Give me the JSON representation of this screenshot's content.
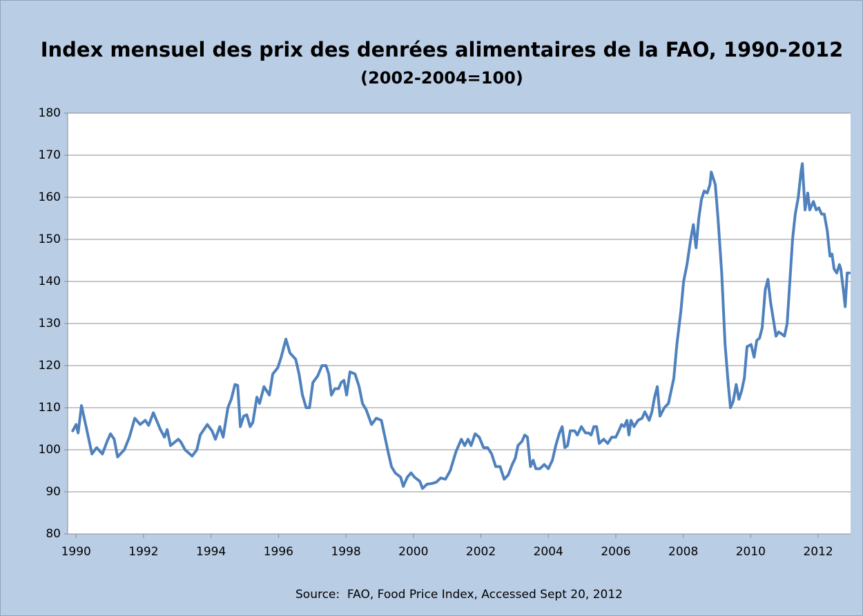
{
  "chart_data": {
    "type": "line",
    "title": "Index mensuel des prix des denrées alimentaires de la FAO, 1990-2012",
    "subtitle": "(2002-2004=100)",
    "source": "Source:  FAO, Food Price Index, Accessed Sept 20, 2012",
    "color": "#4f81bd",
    "grid": true,
    "xlim": [
      1989.75,
      2012.96
    ],
    "xticks": [
      1990,
      1992,
      1994,
      1996,
      1998,
      2000,
      2002,
      2004,
      2006,
      2008,
      2010,
      2012
    ],
    "ylim": [
      80,
      180
    ],
    "yticks": [
      80,
      90,
      100,
      110,
      120,
      130,
      140,
      150,
      160,
      170,
      180
    ],
    "x": [
      1989.9,
      1990.0,
      1990.06,
      1990.16,
      1990.31,
      1990.47,
      1990.61,
      1990.78,
      1990.92,
      1991.02,
      1991.13,
      1991.23,
      1991.43,
      1991.58,
      1991.74,
      1991.9,
      1992.05,
      1992.15,
      1992.29,
      1992.5,
      1992.62,
      1992.7,
      1992.8,
      1993.03,
      1993.11,
      1993.23,
      1993.44,
      1993.58,
      1993.68,
      1993.89,
      1994.03,
      1994.13,
      1994.26,
      1994.36,
      1994.5,
      1994.6,
      1994.71,
      1994.79,
      1994.87,
      1994.97,
      1995.06,
      1995.16,
      1995.24,
      1995.36,
      1995.44,
      1995.57,
      1995.73,
      1995.83,
      1995.98,
      1996.08,
      1996.22,
      1996.34,
      1996.51,
      1996.61,
      1996.71,
      1996.82,
      1996.92,
      1997.02,
      1997.16,
      1997.29,
      1997.41,
      1997.49,
      1997.57,
      1997.67,
      1997.78,
      1997.86,
      1997.94,
      1998.02,
      1998.12,
      1998.27,
      1998.39,
      1998.49,
      1998.6,
      1998.76,
      1998.9,
      1999.05,
      1999.13,
      1999.25,
      1999.35,
      1999.46,
      1999.62,
      1999.7,
      1999.82,
      1999.93,
      2000.03,
      2000.19,
      2000.27,
      2000.4,
      2000.56,
      2000.68,
      2000.81,
      2000.95,
      2001.09,
      2001.26,
      2001.42,
      2001.52,
      2001.62,
      2001.71,
      2001.83,
      2001.95,
      2002.08,
      2002.2,
      2002.32,
      2002.44,
      2002.57,
      2002.69,
      2002.81,
      2002.93,
      2003.02,
      2003.1,
      2003.22,
      2003.3,
      2003.38,
      2003.47,
      2003.55,
      2003.63,
      2003.75,
      2003.88,
      2004.0,
      2004.12,
      2004.22,
      2004.33,
      2004.41,
      2004.49,
      2004.57,
      2004.65,
      2004.78,
      2004.86,
      2004.98,
      2005.1,
      2005.19,
      2005.27,
      2005.35,
      2005.43,
      2005.51,
      2005.64,
      2005.76,
      2005.88,
      2006.0,
      2006.09,
      2006.17,
      2006.25,
      2006.33,
      2006.39,
      2006.45,
      2006.54,
      2006.66,
      2006.78,
      2006.86,
      2006.99,
      2007.07,
      2007.15,
      2007.23,
      2007.31,
      2007.44,
      2007.56,
      2007.64,
      2007.72,
      2007.81,
      2007.93,
      2008.01,
      2008.11,
      2008.22,
      2008.3,
      2008.38,
      2008.46,
      2008.54,
      2008.62,
      2008.71,
      2008.79,
      2008.83,
      2008.95,
      2009.03,
      2009.14,
      2009.24,
      2009.34,
      2009.4,
      2009.48,
      2009.57,
      2009.65,
      2009.73,
      2009.81,
      2009.89,
      2010.01,
      2010.1,
      2010.18,
      2010.26,
      2010.34,
      2010.43,
      2010.51,
      2010.59,
      2010.67,
      2010.75,
      2010.83,
      2010.92,
      2011.0,
      2011.08,
      2011.16,
      2011.24,
      2011.32,
      2011.41,
      2011.49,
      2011.53,
      2011.61,
      2011.69,
      2011.75,
      2011.86,
      2011.94,
      2012.02,
      2012.1,
      2012.18,
      2012.27,
      2012.35,
      2012.41,
      2012.47,
      2012.55,
      2012.63,
      2012.67,
      2012.76,
      2012.8,
      2012.86,
      2012.92
    ],
    "values": [
      104.5,
      106,
      104,
      110.5,
      105,
      99,
      100.5,
      99,
      102,
      103.8,
      102.5,
      98.3,
      100,
      103,
      107.5,
      106,
      107,
      105.8,
      108.8,
      104.8,
      103,
      104.8,
      101,
      102.5,
      101.8,
      100,
      98.5,
      100,
      103.5,
      106,
      104.5,
      102.5,
      105.5,
      103,
      110,
      112,
      115.5,
      115.3,
      105.5,
      108,
      108.3,
      105.5,
      106.5,
      112.5,
      111,
      115,
      113,
      118,
      119.5,
      122,
      126.3,
      123,
      121.5,
      118,
      113,
      110,
      110,
      116,
      117.5,
      120,
      120,
      118,
      113,
      114.5,
      114.5,
      116,
      116.5,
      113,
      118.5,
      118,
      115,
      111,
      109.5,
      106,
      107.5,
      107,
      104,
      99.5,
      96,
      94.5,
      93.5,
      91.3,
      93.5,
      94.5,
      93.5,
      92.5,
      90.8,
      91.8,
      92,
      92.3,
      93.3,
      93,
      95,
      99.5,
      102.5,
      101,
      102.5,
      101,
      103.8,
      103,
      100.5,
      100.5,
      99,
      96,
      96,
      93,
      94,
      96.5,
      98,
      101,
      102,
      103.5,
      103,
      96,
      97.5,
      95.5,
      95.5,
      96.5,
      95.5,
      97.5,
      101,
      104,
      105.5,
      100.5,
      101,
      104.5,
      104.5,
      103.5,
      105.5,
      104,
      104,
      103.5,
      105.5,
      105.5,
      101.5,
      102.5,
      101.5,
      103,
      103,
      104.5,
      106,
      105.5,
      107,
      103.5,
      107,
      105.5,
      107,
      107.5,
      109,
      107,
      109,
      112.5,
      115,
      108,
      110,
      111,
      114,
      117,
      125,
      133,
      140,
      144,
      150,
      153.5,
      148,
      155,
      159.5,
      161.5,
      161,
      163,
      166,
      163,
      155,
      142,
      125,
      115,
      110,
      111.5,
      115.5,
      112,
      114,
      117,
      124.5,
      125,
      122,
      126,
      126.5,
      129,
      138,
      140.5,
      135,
      131,
      127,
      128,
      127.5,
      127,
      130,
      140,
      150,
      156,
      160,
      166,
      168,
      157,
      161,
      157,
      159,
      157,
      157.5,
      156,
      156,
      152,
      146,
      146.5,
      143,
      142,
      144,
      143,
      137,
      134,
      142,
      142
    ]
  }
}
